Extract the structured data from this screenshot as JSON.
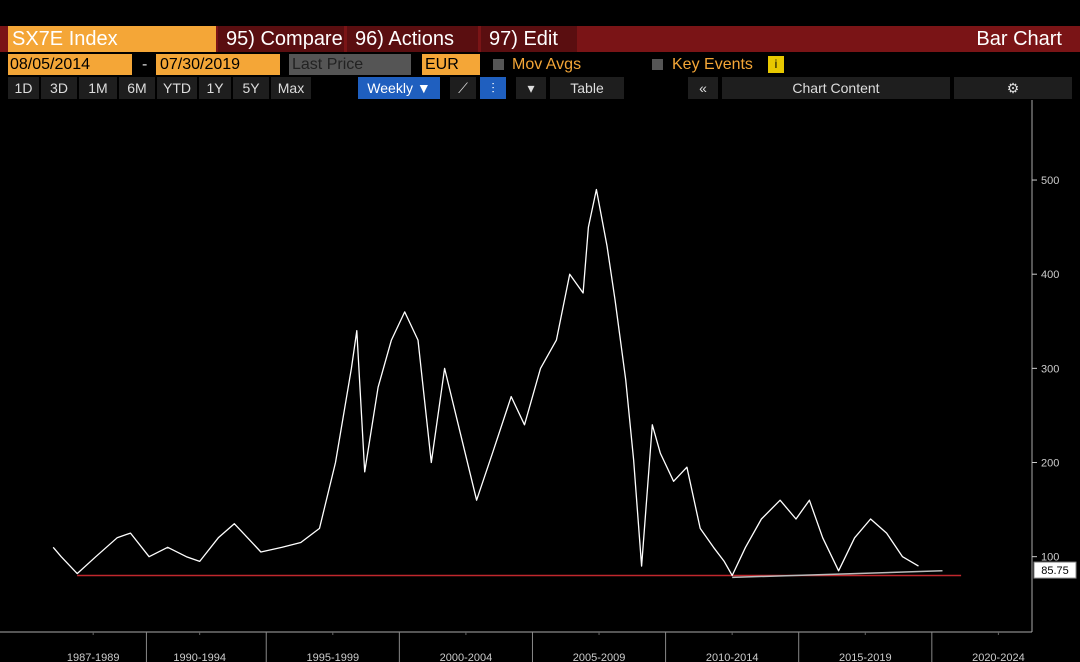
{
  "toolbar": {
    "security": "SX7E Index",
    "menus": [
      "95) Compare",
      "96) Actions",
      "97) Edit"
    ],
    "mode": "Bar Chart",
    "start_date": "08/05/2014",
    "date_separator": "-",
    "end_date": "07/30/2019",
    "field": "Last Price",
    "currency": "EUR",
    "mov_avgs": "Mov Avgs",
    "key_events": "Key Events",
    "periods": [
      "1D",
      "3D",
      "1M",
      "6M",
      "YTD",
      "1Y",
      "5Y",
      "Max"
    ],
    "frequency": "Weekly ▼",
    "table": "Table",
    "chart_content": "Chart Content"
  },
  "chart_data": {
    "type": "line",
    "xlim": [
      1985,
      2023.8
    ],
    "ylim": [
      20,
      585
    ],
    "yticks": [
      100,
      200,
      300,
      400,
      500
    ],
    "xticks": [
      {
        "value": 1988.5,
        "label": "1987-1989"
      },
      {
        "value": 1992.5,
        "label": "1990-1994"
      },
      {
        "value": 1997.5,
        "label": "1995-1999"
      },
      {
        "value": 2002.5,
        "label": "2000-2004"
      },
      {
        "value": 2007.5,
        "label": "2005-2009"
      },
      {
        "value": 2012.5,
        "label": "2010-2014"
      },
      {
        "value": 2017.5,
        "label": "2015-2019"
      },
      {
        "value": 2022.5,
        "label": "2020-2024"
      }
    ],
    "series": [
      {
        "color": "#ffffff",
        "x": [
          1987.0,
          1987.3,
          1987.9,
          1988.6,
          1989.4,
          1989.9,
          1990.6,
          1991.3,
          1992.0,
          1992.5,
          1993.2,
          1993.8,
          1994.3,
          1994.8,
          1995.6,
          1996.3,
          1997.0,
          1997.6,
          1998.2,
          1998.4,
          1998.7,
          1999.2,
          1999.7,
          2000.2,
          2000.7,
          2001.2,
          2001.7,
          2002.3,
          2002.9,
          2003.5,
          2004.2,
          2004.7,
          2005.3,
          2005.9,
          2006.4,
          2006.9,
          2007.1,
          2007.4,
          2007.8,
          2008.1,
          2008.5,
          2008.8,
          2009.1,
          2009.5,
          2009.8,
          2010.3,
          2010.8,
          2011.3,
          2011.8,
          2012.2,
          2012.5,
          2013.0,
          2013.6,
          2014.3,
          2014.9,
          2015.4,
          2015.9,
          2016.5,
          2017.1,
          2017.7,
          2018.3,
          2018.9,
          2019.5
        ],
        "values": [
          110,
          100,
          82,
          100,
          120,
          125,
          100,
          110,
          100,
          95,
          120,
          135,
          120,
          105,
          110,
          115,
          130,
          200,
          300,
          340,
          190,
          280,
          330,
          360,
          330,
          200,
          300,
          230,
          160,
          210,
          270,
          240,
          300,
          330,
          400,
          380,
          450,
          490,
          430,
          373,
          288,
          203,
          90,
          240,
          210,
          180,
          195,
          130,
          110,
          95,
          80,
          110,
          140,
          160,
          140,
          160,
          120,
          85,
          120,
          140,
          125,
          100,
          90
        ]
      }
    ],
    "reference_lines": [
      {
        "color": "#c0272d",
        "x": [
          1987.9,
          2021.1
        ],
        "values": [
          80,
          80
        ]
      },
      {
        "color": "#bbbbbb",
        "x": [
          2012.5,
          2020.4
        ],
        "values": [
          78,
          85
        ]
      }
    ],
    "last_value": 85.75
  }
}
